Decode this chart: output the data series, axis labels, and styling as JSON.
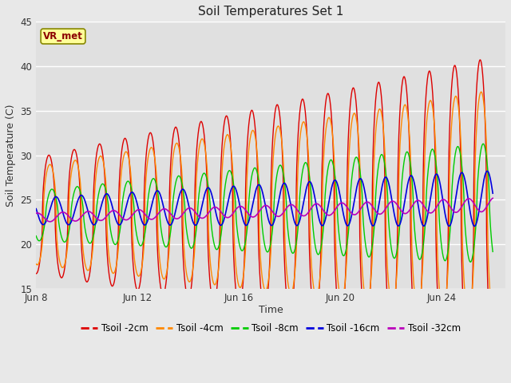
{
  "title": "Soil Temperatures Set 1",
  "xlabel": "Time",
  "ylabel": "Soil Temperature (C)",
  "ylim": [
    15,
    45
  ],
  "yticks": [
    15,
    20,
    25,
    30,
    35,
    40,
    45
  ],
  "xtick_labels": [
    "Jun 8",
    "Jun 12",
    "Jun 16",
    "Jun 20",
    "Jun 24"
  ],
  "annotation": "VR_met",
  "fig_bg_color": "#e8e8e8",
  "plot_bg_color": "#e0e0e0",
  "line_colors": {
    "2cm": "#dd0000",
    "4cm": "#ff8800",
    "8cm": "#00cc00",
    "16cm": "#0000dd",
    "32cm": "#bb00bb"
  },
  "legend_labels": [
    "Tsoil -2cm",
    "Tsoil -4cm",
    "Tsoil -8cm",
    "Tsoil -16cm",
    "Tsoil -32cm"
  ],
  "n_points": 2000
}
